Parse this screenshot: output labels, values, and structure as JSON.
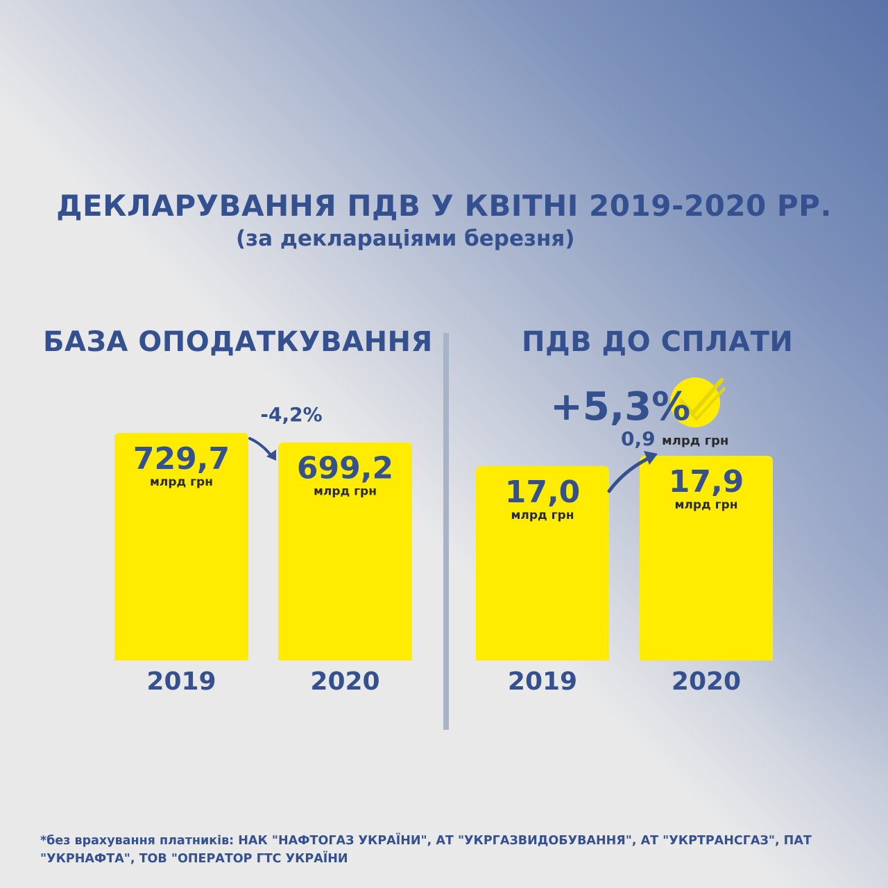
{
  "title": "ДЕКЛАРУВАННЯ ПДВ У КВІТНІ 2019-2020 РР.",
  "subtitle": "(за деклараціями березня)",
  "colors": {
    "bar": "#ffec00",
    "text": "#34508f",
    "divider": "#a9b3c8"
  },
  "chart_data": [
    {
      "type": "bar",
      "title": "БАЗА ОПОДАТКУВАННЯ",
      "categories": [
        "2019",
        "2020"
      ],
      "values": [
        729.7,
        699.2
      ],
      "value_labels": [
        "729,7",
        "699,2"
      ],
      "unit": "млрд грн",
      "change": "-4,2%"
    },
    {
      "type": "bar",
      "title": "ПДВ ДО СПЛАТИ",
      "categories": [
        "2019",
        "2020"
      ],
      "values": [
        17.0,
        17.9
      ],
      "value_labels": [
        "17,0",
        "17,9"
      ],
      "unit": "млрд грн",
      "change": "+5,3%",
      "change_abs": "0,9",
      "change_abs_unit": "млрд грн"
    }
  ],
  "footnote": "*без врахування платників: НАК \"НАФТОГАЗ УКРАЇНИ\", АТ \"УКРГАЗВИДОБУВАННЯ\", АТ \"УКРТРАНСГАЗ\", ПАТ \"УКРНАФТА\", ТОВ \"ОПЕРАТОР ГТС УКРАЇНИ"
}
